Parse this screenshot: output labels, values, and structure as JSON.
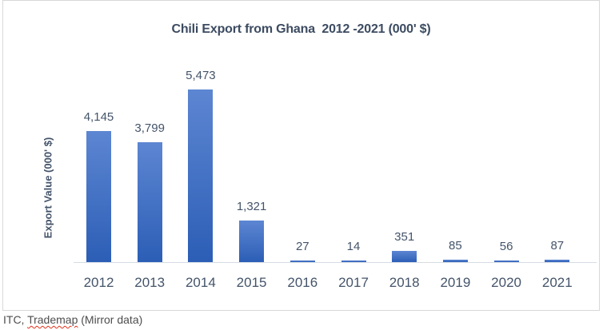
{
  "chart_data": {
    "type": "bar",
    "title": "Chili Export from Ghana  2012 -2021 (000' $)",
    "ylabel": "Export Value (000' $)",
    "xlabel": "",
    "categories": [
      "2012",
      "2013",
      "2014",
      "2015",
      "2016",
      "2017",
      "2018",
      "2019",
      "2020",
      "2021"
    ],
    "values": [
      4145,
      3799,
      5473,
      1321,
      27,
      14,
      351,
      85,
      56,
      87
    ],
    "labels": [
      "4,145",
      "3,799",
      "5,473",
      "1,321",
      "27",
      "14",
      "351",
      "85",
      "56",
      "87"
    ],
    "ylim": [
      0,
      5473
    ],
    "grid": false,
    "legend": "none",
    "bar_color_top": "#5d86d2",
    "bar_color_bottom": "#2c5eb6"
  },
  "source_note": {
    "prefix": "ITC, ",
    "misspelled": "Trademap",
    "suffix": " (Mirror data)"
  },
  "colors": {
    "title_text": "#3c4b61",
    "axis_text": "#44546a",
    "axis_line": "#d6dce4",
    "card_border": "#d8d8d8",
    "spellcheck_underline": "#e0311a",
    "source_text": "#4d4d4d"
  }
}
